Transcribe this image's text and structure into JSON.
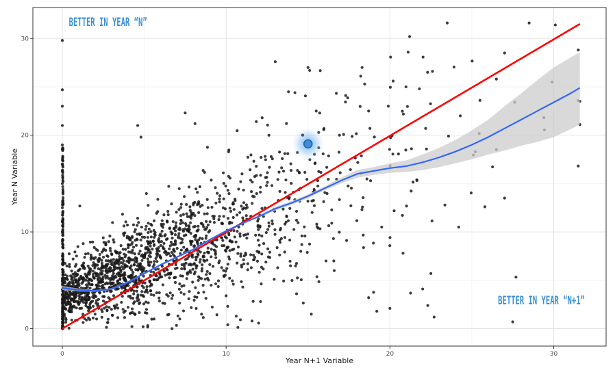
{
  "chart_data": {
    "type": "scatter",
    "title": "",
    "xlabel": "Year N+1 Variable",
    "ylabel": "Year N Variable",
    "xlim": [
      -1.8,
      33.2
    ],
    "ylim": [
      -1.8,
      33.2
    ],
    "x_ticks": [
      0,
      10,
      20,
      30
    ],
    "y_ticks": [
      0,
      10,
      20,
      30
    ],
    "x_tick_labels": [
      "0",
      "10",
      "20",
      "30"
    ],
    "y_tick_labels": [
      "0",
      "10",
      "20",
      "30"
    ],
    "grid": true,
    "legend": "none",
    "annotations": [
      {
        "text": "BETTER IN YEAR “N”",
        "x": 0.4,
        "y": 31.3,
        "anchor": "start"
      },
      {
        "text": "BETTER IN YEAR “N+1”",
        "x": 31.9,
        "y": 2.5,
        "anchor": "end"
      }
    ],
    "highlight_point": {
      "x": 15.0,
      "y": 19.1
    },
    "series": [
      {
        "kind": "points",
        "sample_values": [
          [
            0,
            29.8
          ],
          [
            0,
            24.7
          ],
          [
            0,
            23.0
          ],
          [
            0,
            21.0
          ],
          [
            0,
            19.0
          ],
          [
            0,
            17.0
          ],
          [
            0,
            15.0
          ],
          [
            0,
            12.5
          ],
          [
            0,
            10.0
          ],
          [
            0,
            7.5
          ],
          [
            0,
            5.0
          ],
          [
            0,
            3.0
          ],
          [
            0,
            1.0
          ],
          [
            13,
            27.6
          ],
          [
            15,
            27.0
          ],
          [
            15.1,
            26.7
          ],
          [
            18.3,
            27.0
          ],
          [
            21.2,
            30.2
          ],
          [
            23.5,
            31.6
          ],
          [
            28.5,
            31.6
          ],
          [
            30.1,
            31.4
          ],
          [
            29.9,
            25.5
          ],
          [
            31.6,
            23.5
          ],
          [
            31.6,
            21.1
          ],
          [
            27,
            28.5
          ],
          [
            26.5,
            25.8
          ],
          [
            25.5,
            23.6
          ],
          [
            24.3,
            22.0
          ],
          [
            22.3,
            26.5
          ],
          [
            22.6,
            26.6
          ],
          [
            20.2,
            25.6
          ],
          [
            19.9,
            23.0
          ],
          [
            21.8,
            24.8
          ],
          [
            7.5,
            22.3
          ],
          [
            8.1,
            21.2
          ],
          [
            4.6,
            21.0
          ],
          [
            4.8,
            19.8
          ],
          [
            12.2,
            21.8
          ],
          [
            14.2,
            24.4
          ],
          [
            15.5,
            22.5
          ],
          [
            17.3,
            24.1
          ],
          [
            18.7,
            22.5
          ],
          [
            26.5,
            18.5
          ],
          [
            27.0,
            13.5
          ],
          [
            25.8,
            12.6
          ],
          [
            24.2,
            10.5
          ],
          [
            22.5,
            5.7
          ],
          [
            22.0,
            4.1
          ],
          [
            22.7,
            1.2
          ],
          [
            27.5,
            0.7
          ],
          [
            20.0,
            2.1
          ],
          [
            19.2,
            1.8
          ],
          [
            18.7,
            3.2
          ],
          [
            20.8,
            7.8
          ],
          [
            19.5,
            10.5
          ],
          [
            16.6,
            6.0
          ],
          [
            16.1,
            7.0
          ],
          [
            15.2,
            1.5
          ],
          [
            14.3,
            3.6
          ],
          [
            12.1,
            2.8
          ],
          [
            10.0,
            3.4
          ],
          [
            8.5,
            1.5
          ],
          [
            10.1,
            0.4
          ],
          [
            5.6,
            1.0
          ],
          [
            3.0,
            2.0
          ],
          [
            2.0,
            1.5
          ],
          [
            1.0,
            2.5
          ],
          [
            0.5,
            4.0
          ]
        ]
      },
      {
        "name": "",
        "kind": "reference-line",
        "color": "#ff0000",
        "x": [
          0,
          31.6
        ],
        "y": [
          0,
          31.5
        ]
      },
      {
        "name": "",
        "kind": "smooth",
        "color": "#3366ff",
        "ci_fill": "#cccccc",
        "x": [
          0,
          1,
          2,
          3,
          4,
          5,
          6,
          7,
          8,
          9,
          10,
          11,
          12,
          13,
          14,
          15,
          16,
          17,
          18,
          19,
          20,
          21,
          22,
          23,
          24,
          25,
          26,
          27,
          28,
          29,
          30,
          31,
          31.6
        ],
        "y": [
          4.2,
          4.0,
          3.9,
          4.1,
          4.8,
          5.7,
          6.6,
          7.4,
          8.2,
          9.2,
          10.1,
          10.9,
          11.6,
          12.4,
          13.0,
          13.7,
          14.5,
          15.3,
          16.0,
          16.3,
          16.6,
          16.8,
          17.2,
          17.7,
          18.3,
          19.0,
          19.8,
          20.7,
          21.6,
          22.5,
          23.4,
          24.3,
          24.9
        ],
        "ci_low": [
          4.0,
          3.85,
          3.8,
          4.0,
          4.7,
          5.6,
          6.5,
          7.3,
          8.1,
          9.1,
          10.0,
          10.8,
          11.5,
          12.2,
          12.8,
          13.5,
          14.3,
          15.0,
          15.6,
          15.9,
          16.1,
          16.2,
          16.4,
          16.7,
          17.1,
          17.5,
          18.0,
          18.4,
          18.9,
          19.3,
          19.8,
          20.6,
          21.1
        ],
        "ci_high": [
          4.4,
          4.15,
          4.0,
          4.2,
          4.9,
          5.8,
          6.7,
          7.5,
          8.3,
          9.3,
          10.2,
          11.0,
          11.7,
          12.6,
          13.2,
          13.9,
          14.7,
          15.6,
          16.4,
          16.7,
          17.1,
          17.4,
          18.0,
          18.7,
          19.5,
          20.5,
          21.6,
          23.0,
          24.3,
          25.7,
          27.0,
          28.0,
          28.6
        ]
      }
    ]
  },
  "colors": {
    "background": "#ffffff",
    "panel_border": "#333333",
    "grid_major": "#e3e3e3",
    "grid_minor": "#f2f2f2",
    "point": "#1a1a1a",
    "annotation": "#3a8fd8",
    "highlight_fill": "#3b8ede",
    "highlight_glow": "#5aa8f0"
  }
}
